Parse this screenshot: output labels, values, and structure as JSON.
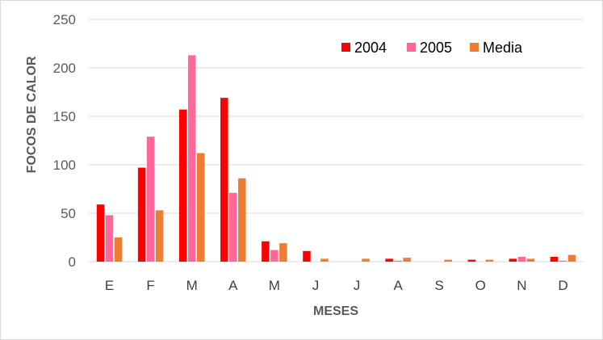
{
  "chart_data": {
    "type": "bar",
    "title": "",
    "xlabel": "MESES",
    "ylabel": "FOCOS DE CALOR",
    "ylim": [
      0,
      250
    ],
    "yticks": [
      0,
      50,
      100,
      150,
      200,
      250
    ],
    "grid": true,
    "legend_position": "top-right",
    "categories": [
      "E",
      "F",
      "M",
      "A",
      "M",
      "J",
      "J",
      "A",
      "S",
      "O",
      "N",
      "D"
    ],
    "series": [
      {
        "name": "2004",
        "color": "#ff0000",
        "values": [
          59,
          97,
          157,
          169,
          21,
          11,
          0,
          3,
          0,
          2,
          3,
          5
        ]
      },
      {
        "name": "2005",
        "color": "#ff6699",
        "values": [
          48,
          129,
          213,
          71,
          12,
          0,
          0,
          1,
          0,
          0,
          5,
          1
        ]
      },
      {
        "name": "Media",
        "color": "#ed7d31",
        "values": [
          25,
          53,
          112,
          86,
          19,
          3,
          3,
          4,
          2,
          2,
          3,
          7
        ]
      }
    ]
  }
}
